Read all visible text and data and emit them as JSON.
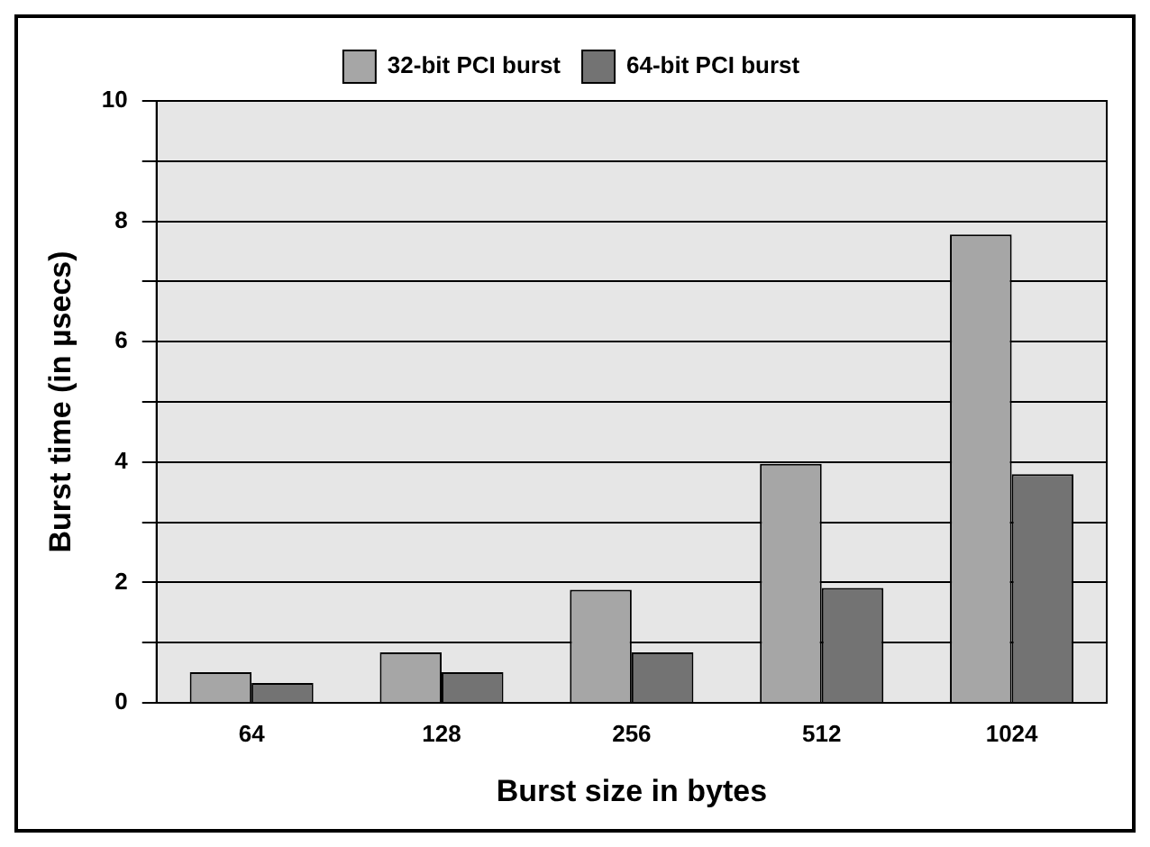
{
  "chart_data": {
    "type": "bar",
    "xlabel": "Burst size in bytes",
    "ylabel": "Burst time (in µsecs)",
    "categories": [
      "64",
      "128",
      "256",
      "512",
      "1024"
    ],
    "series": [
      {
        "name": "32-bit PCI burst",
        "color": "#a6a6a6",
        "values": [
          0.51,
          0.84,
          1.88,
          3.97,
          7.78
        ]
      },
      {
        "name": "64-bit PCI burst",
        "color": "#737373",
        "values": [
          0.33,
          0.51,
          0.84,
          1.91,
          3.8
        ]
      }
    ],
    "ylim": [
      0,
      10
    ],
    "yticks": [
      0,
      {
        "value": 1,
        "label": null
      },
      2,
      {
        "value": 3,
        "label": null
      },
      4,
      {
        "value": 5,
        "label": null
      },
      6,
      {
        "value": 7,
        "label": null
      },
      8,
      {
        "value": 9,
        "label": null
      },
      10
    ],
    "grid": "y",
    "legend": "top"
  }
}
